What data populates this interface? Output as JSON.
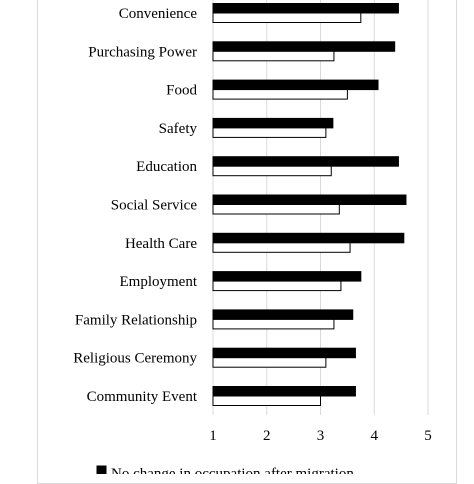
{
  "chart_data": {
    "type": "bar",
    "orientation": "horizontal",
    "categories": [
      "Convenience",
      "Purchasing Power",
      "Food",
      "Safety",
      "Education",
      "Social Service",
      "Health Care",
      "Employment",
      "Family Relationship",
      "Religious Ceremony",
      "Community Event"
    ],
    "series": [
      {
        "values": [
          4.45,
          4.38,
          4.07,
          3.23,
          4.45,
          4.59,
          4.55,
          3.75,
          3.6,
          3.65,
          3.65
        ],
        "color": "#000000"
      },
      {
        "name": "No change in occupation after migration",
        "values": [
          3.75,
          3.25,
          3.5,
          3.1,
          3.2,
          3.35,
          3.55,
          3.38,
          3.25,
          3.1,
          3.0
        ],
        "color": "#ffffff"
      }
    ],
    "xlim": [
      1,
      5
    ],
    "xticks": [
      "1",
      "2",
      "3",
      "4",
      "5"
    ],
    "grid": true,
    "legend_position": "bottom"
  }
}
